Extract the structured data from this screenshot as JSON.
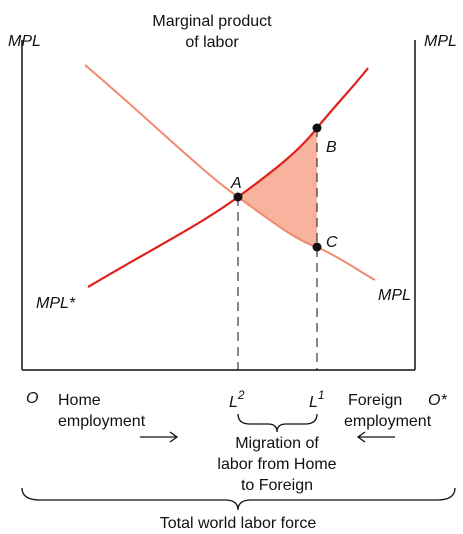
{
  "axis_labels": {
    "left_top": "MPL",
    "right_top": "MPL",
    "title_line1": "Marginal product",
    "title_line2": "of labor"
  },
  "points": {
    "a": "A",
    "b": "B",
    "c": "C"
  },
  "curves": {
    "home": "MPL*",
    "foreign": "MPL"
  },
  "bottom": {
    "origin_left": "O",
    "origin_right": "O*",
    "home_line1": "Home",
    "home_line2": "employment",
    "foreign_line1": "Foreign",
    "foreign_line2": "employment",
    "l2": "L",
    "l2_sup": "2",
    "l1": "L",
    "l1_sup": "1",
    "migration_line1": "Migration of",
    "migration_line2": "labor from Home",
    "migration_line3": "to Foreign",
    "total": "Total world labor force"
  }
}
